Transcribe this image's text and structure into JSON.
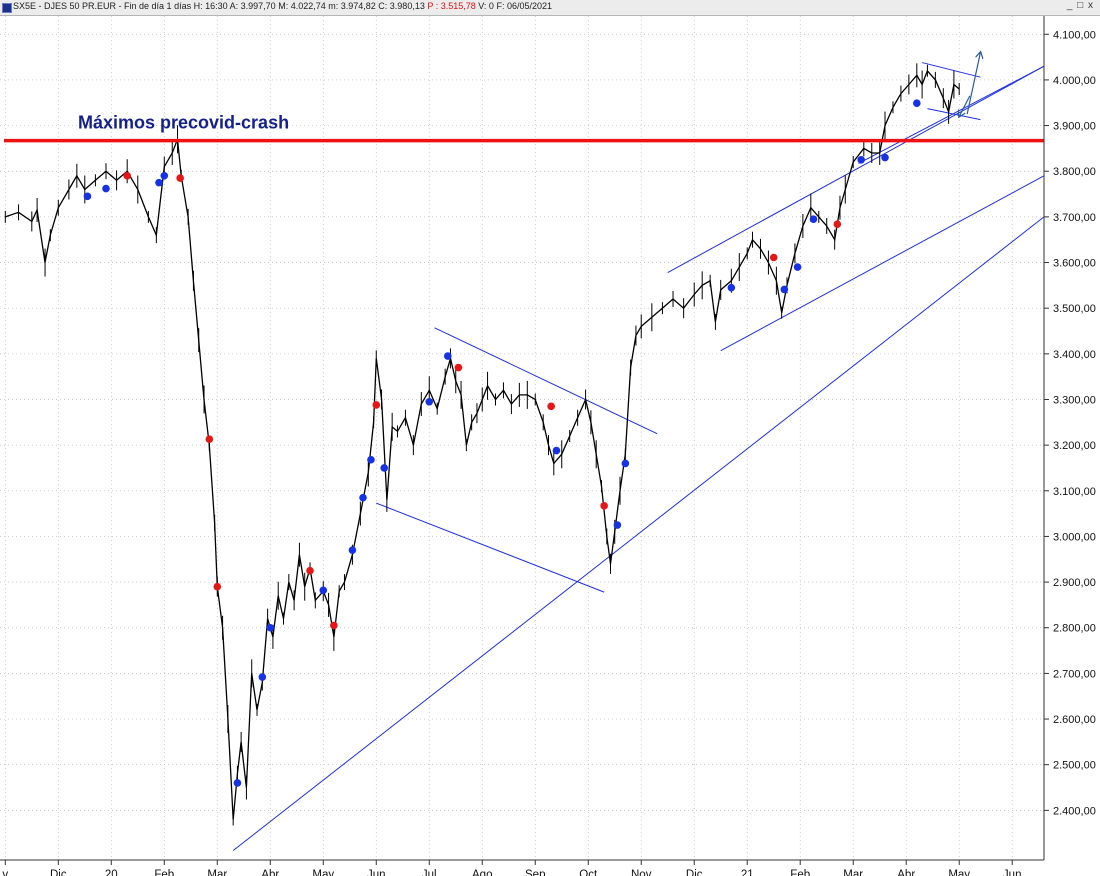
{
  "window": {
    "symbol": "SX5E - DJES 50 PR.EUR - Fin de día 1 días",
    "high": "H: 16:30",
    "open": "A: 3.997,70",
    "max": "M: 4.022,74",
    "min": "m: 3.974,82",
    "close": "C: 3.980,13",
    "pnl": "P : 3.515,78",
    "volume": "V: 0",
    "date": "F: 06/05/2021",
    "controls": {
      "minimize": "_",
      "maximize": "□",
      "close": "x"
    }
  },
  "colors": {
    "candles": "#000000",
    "trendlines": "#1f2ee8",
    "resistance": "#ee1111",
    "marker_buy": "#1632e6",
    "marker_sell": "#e61616",
    "annotation": "#14218a",
    "grid": "#b9b9b9"
  },
  "chart_data": {
    "type": "line",
    "title": "",
    "y_range": [
      2300,
      4140
    ],
    "y_ticks": [
      "4.100,00",
      "4.000,00",
      "3.900,00",
      "3.800,00",
      "3.700,00",
      "3.600,00",
      "3.500,00",
      "3.400,00",
      "3.300,00",
      "3.200,00",
      "3.100,00",
      "3.000,00",
      "2.900,00",
      "2.800,00",
      "2.700,00",
      "2.600,00",
      "2.500,00",
      "2.400,00"
    ],
    "y_tick_values": [
      4100,
      4000,
      3900,
      3800,
      3700,
      3600,
      3500,
      3400,
      3300,
      3200,
      3100,
      3000,
      2900,
      2800,
      2700,
      2600,
      2500,
      2400
    ],
    "x_ticks": [
      "v",
      "Dic",
      "20",
      "Feb",
      "Mar",
      "Abr",
      "May",
      "Jun",
      "Jul",
      "Ago",
      "Sep",
      "Oct",
      "Nov",
      "Dic",
      "21",
      "Feb",
      "Mar",
      "Abr",
      "May",
      "Jun"
    ],
    "x_tick_months": [
      0,
      1,
      2,
      3,
      4,
      5,
      6,
      7,
      8,
      9,
      10,
      11,
      12,
      13,
      14,
      15,
      16,
      17,
      18,
      19
    ],
    "x_range_months": [
      -0.1,
      19.6
    ],
    "grid": true,
    "annotation": {
      "text": "Máximos precovid-crash",
      "y": 3867
    },
    "resistance_y": 3867,
    "series": [
      {
        "key": "price",
        "points": [
          [
            0.0,
            3700
          ],
          [
            0.25,
            3710
          ],
          [
            0.5,
            3690
          ],
          [
            0.6,
            3715
          ],
          [
            0.75,
            3600
          ],
          [
            0.85,
            3660
          ],
          [
            1.0,
            3720
          ],
          [
            1.2,
            3760
          ],
          [
            1.35,
            3790
          ],
          [
            1.5,
            3760
          ],
          [
            1.7,
            3780
          ],
          [
            1.9,
            3800
          ],
          [
            2.1,
            3780
          ],
          [
            2.3,
            3800
          ],
          [
            2.5,
            3760
          ],
          [
            2.7,
            3700
          ],
          [
            2.85,
            3660
          ],
          [
            3.0,
            3810
          ],
          [
            3.15,
            3840
          ],
          [
            3.25,
            3870
          ],
          [
            3.32,
            3790
          ],
          [
            3.45,
            3700
          ],
          [
            3.55,
            3560
          ],
          [
            3.65,
            3430
          ],
          [
            3.75,
            3300
          ],
          [
            3.85,
            3200
          ],
          [
            3.95,
            3030
          ],
          [
            4.0,
            2890
          ],
          [
            4.1,
            2800
          ],
          [
            4.2,
            2600
          ],
          [
            4.3,
            2380
          ],
          [
            4.38,
            2480
          ],
          [
            4.45,
            2550
          ],
          [
            4.55,
            2450
          ],
          [
            4.65,
            2700
          ],
          [
            4.75,
            2620
          ],
          [
            4.85,
            2680
          ],
          [
            4.95,
            2820
          ],
          [
            5.05,
            2780
          ],
          [
            5.15,
            2870
          ],
          [
            5.25,
            2820
          ],
          [
            5.35,
            2900
          ],
          [
            5.45,
            2860
          ],
          [
            5.55,
            2960
          ],
          [
            5.65,
            2890
          ],
          [
            5.75,
            2930
          ],
          [
            5.85,
            2860
          ],
          [
            6.0,
            2880
          ],
          [
            6.1,
            2850
          ],
          [
            6.2,
            2780
          ],
          [
            6.3,
            2880
          ],
          [
            6.4,
            2900
          ],
          [
            6.55,
            2960
          ],
          [
            6.7,
            3050
          ],
          [
            6.85,
            3140
          ],
          [
            6.95,
            3250
          ],
          [
            7.0,
            3390
          ],
          [
            7.1,
            3300
          ],
          [
            7.2,
            3080
          ],
          [
            7.3,
            3240
          ],
          [
            7.4,
            3230
          ],
          [
            7.55,
            3260
          ],
          [
            7.7,
            3200
          ],
          [
            7.85,
            3290
          ],
          [
            8.0,
            3320
          ],
          [
            8.15,
            3280
          ],
          [
            8.3,
            3350
          ],
          [
            8.4,
            3390
          ],
          [
            8.5,
            3340
          ],
          [
            8.6,
            3310
          ],
          [
            8.7,
            3200
          ],
          [
            8.8,
            3250
          ],
          [
            8.9,
            3270
          ],
          [
            9.0,
            3300
          ],
          [
            9.1,
            3330
          ],
          [
            9.25,
            3300
          ],
          [
            9.4,
            3320
          ],
          [
            9.55,
            3290
          ],
          [
            9.7,
            3310
          ],
          [
            9.85,
            3310
          ],
          [
            10.0,
            3300
          ],
          [
            10.15,
            3250
          ],
          [
            10.25,
            3200
          ],
          [
            10.35,
            3160
          ],
          [
            10.5,
            3180
          ],
          [
            10.65,
            3220
          ],
          [
            10.8,
            3260
          ],
          [
            10.95,
            3300
          ],
          [
            11.05,
            3250
          ],
          [
            11.15,
            3180
          ],
          [
            11.25,
            3110
          ],
          [
            11.35,
            3000
          ],
          [
            11.42,
            2940
          ],
          [
            11.5,
            3010
          ],
          [
            11.6,
            3100
          ],
          [
            11.7,
            3180
          ],
          [
            11.8,
            3370
          ],
          [
            11.9,
            3440
          ],
          [
            12.0,
            3460
          ],
          [
            12.2,
            3480
          ],
          [
            12.4,
            3500
          ],
          [
            12.6,
            3520
          ],
          [
            12.8,
            3500
          ],
          [
            13.0,
            3530
          ],
          [
            13.15,
            3550
          ],
          [
            13.3,
            3560
          ],
          [
            13.4,
            3470
          ],
          [
            13.5,
            3540
          ],
          [
            13.7,
            3560
          ],
          [
            13.85,
            3590
          ],
          [
            14.0,
            3620
          ],
          [
            14.1,
            3650
          ],
          [
            14.25,
            3630
          ],
          [
            14.4,
            3600
          ],
          [
            14.55,
            3560
          ],
          [
            14.65,
            3490
          ],
          [
            14.75,
            3550
          ],
          [
            14.9,
            3620
          ],
          [
            15.05,
            3680
          ],
          [
            15.2,
            3720
          ],
          [
            15.35,
            3700
          ],
          [
            15.5,
            3680
          ],
          [
            15.65,
            3650
          ],
          [
            15.75,
            3720
          ],
          [
            15.85,
            3760
          ],
          [
            16.0,
            3820
          ],
          [
            16.2,
            3850
          ],
          [
            16.35,
            3840
          ],
          [
            16.5,
            3840
          ],
          [
            16.6,
            3900
          ],
          [
            16.75,
            3940
          ],
          [
            16.9,
            3970
          ],
          [
            17.05,
            3990
          ],
          [
            17.2,
            4010
          ],
          [
            17.3,
            3990
          ],
          [
            17.4,
            4020
          ],
          [
            17.55,
            4000
          ],
          [
            17.7,
            3960
          ],
          [
            17.8,
            3930
          ],
          [
            17.9,
            3990
          ],
          [
            18.0,
            3980
          ]
        ]
      }
    ],
    "trendlines": [
      {
        "from": [
          4.3,
          2312
        ],
        "to": [
          19.6,
          3700
        ]
      },
      {
        "from": [
          7.0,
          3073
        ],
        "to": [
          11.3,
          2878
        ]
      },
      {
        "from": [
          8.1,
          3457
        ],
        "to": [
          12.3,
          3225
        ]
      },
      {
        "from": [
          12.5,
          3578
        ],
        "to": [
          19.6,
          4030
        ]
      },
      {
        "from": [
          13.5,
          3407
        ],
        "to": [
          19.6,
          3790
        ]
      },
      {
        "from": [
          16.1,
          3817
        ],
        "to": [
          19.6,
          4030
        ]
      },
      {
        "from": [
          17.3,
          4038
        ],
        "to": [
          18.4,
          4006
        ]
      },
      {
        "from": [
          17.4,
          3937
        ],
        "to": [
          18.4,
          3913
        ]
      }
    ],
    "arrows": [
      {
        "from": [
          18.15,
          3925
        ],
        "to": [
          18.4,
          4060
        ]
      },
      {
        "from": [
          18.2,
          3965
        ],
        "to": [
          18.0,
          3920
        ]
      }
    ],
    "markers": {
      "buy": [
        [
          1.55,
          3745
        ],
        [
          1.9,
          3762
        ],
        [
          2.9,
          3775
        ],
        [
          3.0,
          3790
        ],
        [
          4.38,
          2460
        ],
        [
          4.85,
          2692
        ],
        [
          5.0,
          2800
        ],
        [
          6.0,
          2882
        ],
        [
          6.55,
          2970
        ],
        [
          6.75,
          3085
        ],
        [
          6.9,
          3168
        ],
        [
          7.15,
          3150
        ],
        [
          8.0,
          3295
        ],
        [
          8.35,
          3395
        ],
        [
          11.55,
          3025
        ],
        [
          11.7,
          3160
        ],
        [
          10.4,
          3188
        ],
        [
          13.7,
          3545
        ],
        [
          14.7,
          3541
        ],
        [
          14.95,
          3590
        ],
        [
          15.25,
          3695
        ],
        [
          16.15,
          3825
        ],
        [
          16.6,
          3830
        ],
        [
          17.2,
          3949
        ]
      ],
      "sell": [
        [
          2.3,
          3790
        ],
        [
          3.3,
          3785
        ],
        [
          3.85,
          3213
        ],
        [
          4.0,
          2890
        ],
        [
          5.75,
          2925
        ],
        [
          6.2,
          2805
        ],
        [
          7.0,
          3288
        ],
        [
          8.55,
          3370
        ],
        [
          10.3,
          3285
        ],
        [
          11.3,
          3067
        ],
        [
          14.5,
          3611
        ],
        [
          15.7,
          3684
        ]
      ]
    }
  }
}
